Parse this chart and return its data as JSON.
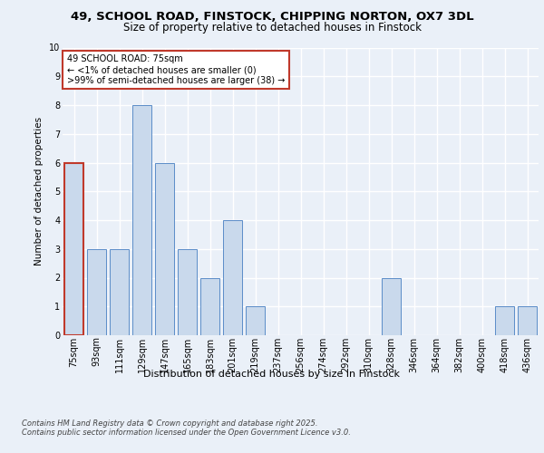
{
  "title1": "49, SCHOOL ROAD, FINSTOCK, CHIPPING NORTON, OX7 3DL",
  "title2": "Size of property relative to detached houses in Finstock",
  "xlabel": "Distribution of detached houses by size in Finstock",
  "ylabel": "Number of detached properties",
  "categories": [
    "75sqm",
    "93sqm",
    "111sqm",
    "129sqm",
    "147sqm",
    "165sqm",
    "183sqm",
    "201sqm",
    "219sqm",
    "237sqm",
    "256sqm",
    "274sqm",
    "292sqm",
    "310sqm",
    "328sqm",
    "346sqm",
    "364sqm",
    "382sqm",
    "400sqm",
    "418sqm",
    "436sqm"
  ],
  "values": [
    6,
    3,
    3,
    8,
    6,
    3,
    2,
    4,
    1,
    0,
    0,
    0,
    0,
    0,
    2,
    0,
    0,
    0,
    0,
    1,
    1
  ],
  "highlight_index": 0,
  "bar_color": "#c9d9ec",
  "bar_edge_color": "#5b8dc8",
  "highlight_bar_edge_color": "#c0392b",
  "annotation_box_text": "49 SCHOOL ROAD: 75sqm\n← <1% of detached houses are smaller (0)\n>99% of semi-detached houses are larger (38) →",
  "annotation_box_color": "#ffffff",
  "annotation_box_edge_color": "#c0392b",
  "footer_line1": "Contains HM Land Registry data © Crown copyright and database right 2025.",
  "footer_line2": "Contains public sector information licensed under the Open Government Licence v3.0.",
  "bg_color": "#eaf0f8",
  "grid_color": "#ffffff",
  "ylim": [
    0,
    10
  ],
  "yticks": [
    0,
    1,
    2,
    3,
    4,
    5,
    6,
    7,
    8,
    9,
    10
  ],
  "title1_fontsize": 9.5,
  "title2_fontsize": 8.5,
  "ylabel_fontsize": 7.5,
  "xlabel_fontsize": 8.0,
  "tick_fontsize": 7.0,
  "ann_fontsize": 7.0,
  "footer_fontsize": 6.0
}
